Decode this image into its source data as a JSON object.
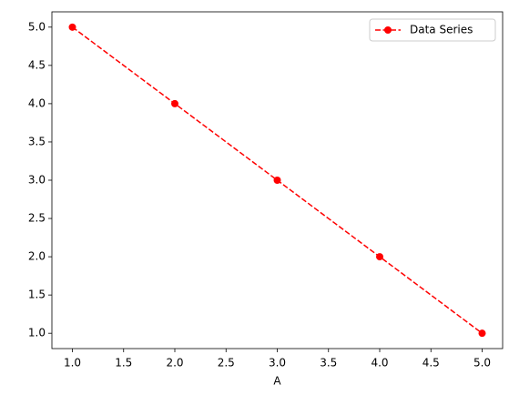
{
  "chart_data": {
    "type": "line",
    "x_label": "A",
    "x": [
      1,
      2,
      3,
      4,
      5
    ],
    "series": [
      {
        "name": "Data Series",
        "color": "#ff0000",
        "values": [
          5,
          4,
          3,
          2,
          1
        ]
      }
    ],
    "xlim": [
      0.8,
      5.2
    ],
    "ylim": [
      0.8,
      5.2
    ],
    "xticks": [
      {
        "value": 1,
        "label": "1.0"
      },
      {
        "value": 1.5,
        "label": "1.5"
      },
      {
        "value": 2,
        "label": "2.0"
      },
      {
        "value": 2.5,
        "label": "2.5"
      },
      {
        "value": 3,
        "label": "3.0"
      },
      {
        "value": 3.5,
        "label": "3.5"
      },
      {
        "value": 4,
        "label": "4.0"
      },
      {
        "value": 4.5,
        "label": "4.5"
      },
      {
        "value": 5,
        "label": "5.0"
      }
    ],
    "yticks": [
      {
        "value": 1,
        "label": "1.0"
      },
      {
        "value": 1.5,
        "label": "1.5"
      },
      {
        "value": 2,
        "label": "2.0"
      },
      {
        "value": 2.5,
        "label": "2.5"
      },
      {
        "value": 3,
        "label": "3.0"
      },
      {
        "value": 3.5,
        "label": "3.5"
      },
      {
        "value": 4,
        "label": "4.0"
      },
      {
        "value": 4.5,
        "label": "4.5"
      },
      {
        "value": 5,
        "label": "5.0"
      }
    ],
    "grid": false,
    "legend": "upper right",
    "line_style": "dashed",
    "marker": "circle"
  }
}
